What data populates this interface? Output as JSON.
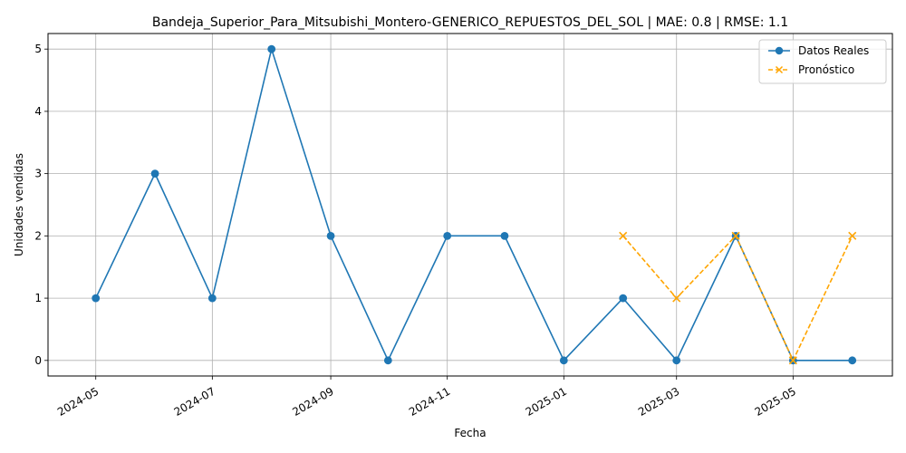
{
  "chart_data": {
    "type": "line",
    "title": "Bandeja_Superior_Para_Mitsubishi_Montero-GENERICO_REPUESTOS_DEL_SOL | MAE: 0.8 | RMSE: 1.1",
    "xlabel": "Fecha",
    "ylabel": "Unidades vendidas",
    "xlim": [
      "2024-04-06",
      "2025-06-22"
    ],
    "ylim": [
      -0.25,
      5.25
    ],
    "grid": true,
    "legend_position": "top-right",
    "x_ticks": [
      "2024-05-01",
      "2024-07-01",
      "2024-09-01",
      "2024-11-01",
      "2025-01-01",
      "2025-03-01",
      "2025-05-01"
    ],
    "x_tick_labels": [
      "2024-05",
      "2024-07",
      "2024-09",
      "2024-11",
      "2025-01",
      "2025-03",
      "2025-05"
    ],
    "y_ticks": [
      0,
      1,
      2,
      3,
      4,
      5
    ],
    "y_tick_labels": [
      "0",
      "1",
      "2",
      "3",
      "4",
      "5"
    ],
    "series": [
      {
        "name": "Datos Reales",
        "color": "#1f77b4",
        "line_style": "solid",
        "marker": "circle",
        "x": [
          "2024-05-01",
          "2024-06-01",
          "2024-07-01",
          "2024-08-01",
          "2024-09-01",
          "2024-10-01",
          "2024-11-01",
          "2024-12-01",
          "2025-01-01",
          "2025-02-01",
          "2025-03-01",
          "2025-04-01",
          "2025-05-01",
          "2025-06-01"
        ],
        "values": [
          1,
          3,
          1,
          5,
          2,
          0,
          2,
          2,
          0,
          1,
          0,
          2,
          0,
          0
        ]
      },
      {
        "name": "Pronóstico",
        "color": "#ffa500",
        "line_style": "dashed",
        "marker": "x",
        "x": [
          "2025-02-01",
          "2025-03-01",
          "2025-04-01",
          "2025-05-01",
          "2025-06-01"
        ],
        "values": [
          2,
          1,
          2,
          0,
          2
        ]
      }
    ]
  }
}
